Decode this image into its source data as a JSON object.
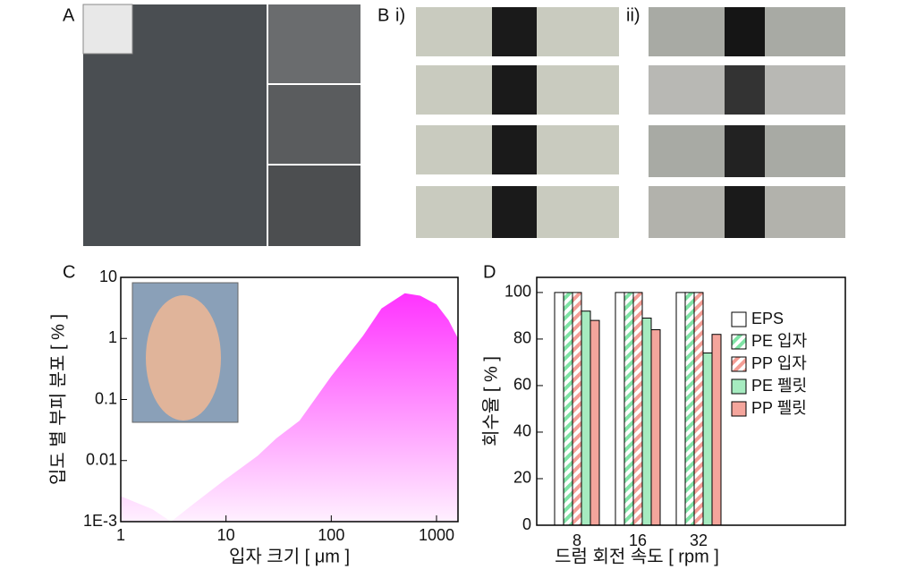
{
  "panel_labels": [
    "A",
    "B",
    "i)",
    "ii)",
    "C",
    "D"
  ],
  "chart_data": [
    {
      "type": "area",
      "xlabel": "입자 크기 [ μm ]",
      "ylabel": "입도 별 부피 분포 [ % ]",
      "xscale": "log",
      "yscale": "log",
      "color": "#ff33ff",
      "x": [
        1,
        2,
        3,
        5,
        10,
        20,
        30,
        50,
        100,
        200,
        300,
        500,
        700,
        1000,
        1300,
        1600
      ],
      "values": [
        0.0026,
        0.0016,
        0.001,
        0.002,
        0.005,
        0.012,
        0.023,
        0.045,
        0.24,
        1.1,
        3.1,
        5.5,
        5.0,
        3.6,
        2.0,
        1.0
      ],
      "xlim": [
        1,
        1600
      ],
      "ylim": [
        0.001,
        10
      ],
      "xticks": [
        1,
        10,
        100,
        1000
      ],
      "yticks": [
        {
          "value": 0.001,
          "label": "1E-3"
        },
        0.01,
        0.1,
        1,
        10
      ]
    },
    {
      "type": "bar",
      "xlabel": "드럼 회전 속도 [ rpm ]",
      "ylabel": "회수율 [ % ]",
      "categories": [
        "8",
        "16",
        "32"
      ],
      "series": [
        {
          "name": "EPS",
          "color": "#ffffff",
          "hatch": false,
          "values": [
            100,
            100,
            100
          ]
        },
        {
          "name": "PE 입자",
          "color": "#7fe3a5",
          "hatch": true,
          "values": [
            100,
            100,
            100
          ]
        },
        {
          "name": "PP 입자",
          "color": "#f49d95",
          "hatch": true,
          "values": [
            100,
            100,
            100
          ]
        },
        {
          "name": "PE 펠릿",
          "color": "#a6ebc0",
          "hatch": false,
          "values": [
            92,
            89,
            74
          ]
        },
        {
          "name": "PP 펠릿",
          "color": "#f4a59c",
          "hatch": false,
          "values": [
            88,
            84,
            82
          ]
        }
      ],
      "ylim": [
        0,
        106.5
      ],
      "yticks": [
        0,
        20,
        40,
        60,
        80,
        100
      ]
    }
  ]
}
